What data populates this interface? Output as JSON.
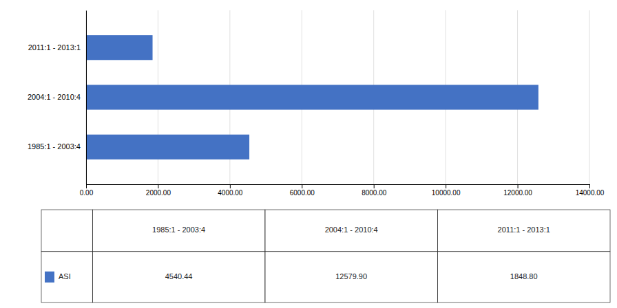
{
  "chart_data": {
    "type": "bar",
    "orientation": "horizontal",
    "categories": [
      "1985:1 - 2003:4",
      "2004:1 - 2010:4",
      "2011:1 - 2013:1"
    ],
    "series": [
      {
        "name": "ASI",
        "color": "#4472C4",
        "values": [
          4540.44,
          12579.9,
          1848.8
        ],
        "value_labels": [
          "4540.44",
          "12579.90",
          "1848.80"
        ]
      }
    ],
    "xlim": [
      0,
      14000
    ],
    "xticks": [
      {
        "value": 0,
        "label": "0.00"
      },
      {
        "value": 2000,
        "label": "2000.00"
      },
      {
        "value": 4000,
        "label": "4000.00"
      },
      {
        "value": 6000,
        "label": "6000.00"
      },
      {
        "value": 8000,
        "label": "8000.00"
      },
      {
        "value": 10000,
        "label": "10000.00"
      },
      {
        "value": 12000,
        "label": "12000.00"
      },
      {
        "value": 14000,
        "label": "14000.00"
      }
    ],
    "grid": true,
    "data_labels": true
  }
}
